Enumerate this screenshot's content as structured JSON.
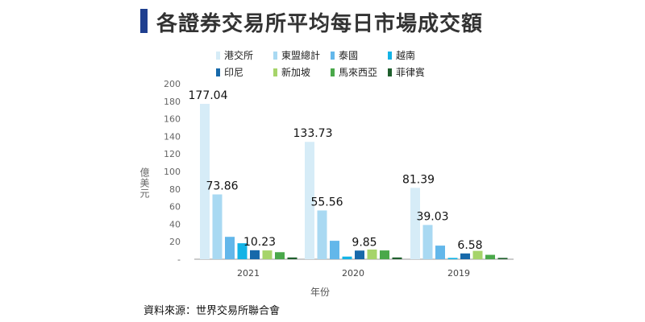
{
  "header": {
    "title": "各證券交易所平均每日市場成交額"
  },
  "source": "資料來源：世界交易所聯合會",
  "colors": {
    "title_bar": "#1f3f8f",
    "axis": "#999999"
  },
  "chart_data": {
    "type": "bar",
    "title": "各證券交易所平均每日市場成交額",
    "xlabel": "年份",
    "ylabel": "億美元",
    "ylim": [
      0,
      200
    ],
    "yticks": [
      "200",
      "180",
      "160",
      "140",
      "120",
      "100",
      "80",
      "60",
      "40",
      "20",
      "-"
    ],
    "categories": [
      "2021",
      "2020",
      "2019"
    ],
    "legend_position": "top",
    "series": [
      {
        "name": "港交所",
        "color": "#d6ecf7",
        "values": [
          177.04,
          133.73,
          81.39
        ],
        "labels": [
          "177.04",
          "133.73",
          "81.39"
        ]
      },
      {
        "name": "東盟總計",
        "color": "#a9d9f2",
        "values": [
          73.86,
          55.56,
          39.03
        ],
        "labels": [
          "73.86",
          "55.56",
          "39.03"
        ]
      },
      {
        "name": "泰國",
        "color": "#63b7ea",
        "values": [
          25.5,
          21.0,
          15.5
        ],
        "labels": [
          "",
          "",
          ""
        ]
      },
      {
        "name": "越南",
        "color": "#13b3e6",
        "values": [
          18.2,
          3.0,
          1.5
        ],
        "labels": [
          "",
          "",
          ""
        ]
      },
      {
        "name": "印尼",
        "color": "#1769aa",
        "values": [
          10.23,
          9.85,
          6.58
        ],
        "labels": [
          "10.23",
          "9.85",
          "6.58"
        ]
      },
      {
        "name": "新加坡",
        "color": "#a6d46a",
        "values": [
          10.0,
          11.0,
          9.5
        ],
        "labels": [
          "",
          "",
          ""
        ]
      },
      {
        "name": "馬來西亞",
        "color": "#4aa84a",
        "values": [
          8.0,
          10.0,
          5.0
        ],
        "labels": [
          "",
          "",
          ""
        ]
      },
      {
        "name": "菲律賓",
        "color": "#1f5f2d",
        "values": [
          2.0,
          2.0,
          1.5
        ],
        "labels": [
          "",
          "",
          ""
        ]
      }
    ]
  }
}
